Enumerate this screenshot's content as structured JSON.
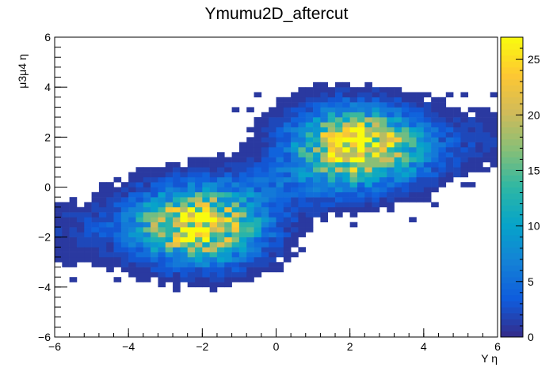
{
  "chart_data": {
    "type": "heatmap",
    "title": "Ymumu2D_aftercut",
    "xlabel": "Υ η",
    "ylabel": "μ3μ4 η",
    "xlim": [
      -6,
      6
    ],
    "ylim": [
      -6,
      6
    ],
    "x_ticks": [
      -6,
      -4,
      -2,
      0,
      2,
      4,
      6
    ],
    "y_ticks": [
      -6,
      -4,
      -2,
      0,
      2,
      4,
      6
    ],
    "colorbar": {
      "min": 0,
      "max": 27,
      "ticks": [
        0,
        5,
        10,
        15,
        20,
        25
      ],
      "palette": [
        "#352a87",
        "#0f5cdd",
        "#1481d6",
        "#06a4ca",
        "#2eb7a4",
        "#87bf77",
        "#d1bb59",
        "#fec832",
        "#f9fb0e"
      ]
    },
    "bins": {
      "nx": 60,
      "ny": 60,
      "bin_width": 0.2
    },
    "clusters": [
      {
        "center": [
          -2.1,
          -1.6
        ],
        "peak_count": 24
      },
      {
        "center": [
          2.2,
          1.7
        ],
        "peak_count": 26
      }
    ]
  }
}
